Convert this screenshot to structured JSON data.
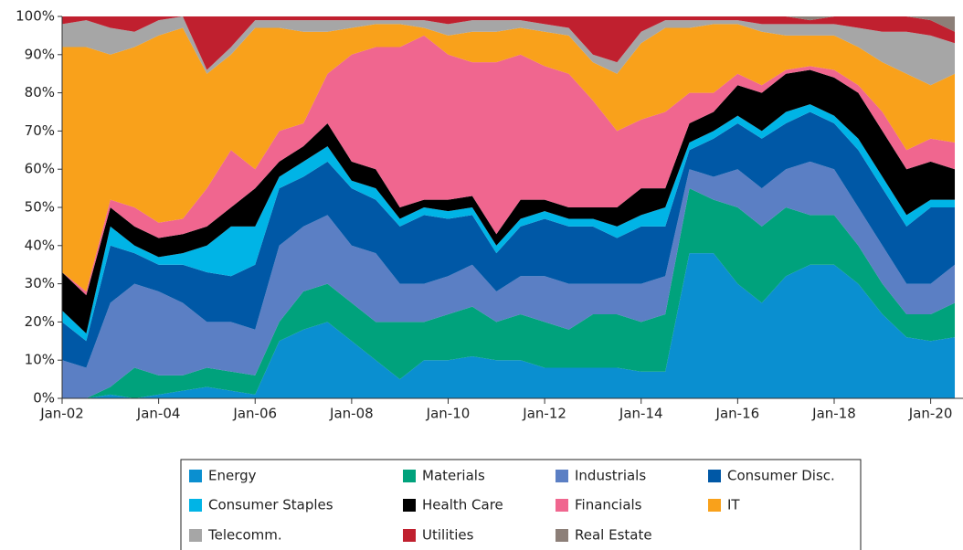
{
  "chart_data": {
    "type": "stacked_area",
    "x": [
      2002,
      2002.5,
      2003,
      2003.5,
      2004,
      2004.5,
      2005,
      2005.5,
      2006,
      2006.5,
      2007,
      2007.5,
      2008,
      2008.5,
      2009,
      2009.5,
      2010,
      2010.5,
      2011,
      2011.5,
      2012,
      2012.5,
      2013,
      2013.5,
      2014,
      2014.5,
      2015,
      2015.5,
      2016,
      2016.5,
      2017,
      2017.5,
      2018,
      2018.5,
      2019,
      2019.5,
      2020,
      2020.5
    ],
    "xlim": [
      2002,
      2020.67
    ],
    "xticks": [
      {
        "value": 2002,
        "label": "Jan-02"
      },
      {
        "value": 2004,
        "label": "Jan-04"
      },
      {
        "value": 2006,
        "label": "Jan-06"
      },
      {
        "value": 2008,
        "label": "Jan-08"
      },
      {
        "value": 2010,
        "label": "Jan-10"
      },
      {
        "value": 2012,
        "label": "Jan-12"
      },
      {
        "value": 2014,
        "label": "Jan-14"
      },
      {
        "value": 2016,
        "label": "Jan-16"
      },
      {
        "value": 2018,
        "label": "Jan-18"
      },
      {
        "value": 2020,
        "label": "Jan-20"
      }
    ],
    "ylim": [
      0,
      100
    ],
    "yticks": [
      {
        "value": 0,
        "label": "0%"
      },
      {
        "value": 10,
        "label": "10%"
      },
      {
        "value": 20,
        "label": "20%"
      },
      {
        "value": 30,
        "label": "30%"
      },
      {
        "value": 40,
        "label": "40%"
      },
      {
        "value": 50,
        "label": "50%"
      },
      {
        "value": 60,
        "label": "60%"
      },
      {
        "value": 70,
        "label": "70%"
      },
      {
        "value": 80,
        "label": "80%"
      },
      {
        "value": 90,
        "label": "90%"
      },
      {
        "value": 100,
        "label": "100%"
      }
    ],
    "series": [
      {
        "name": "Energy",
        "color": "#0a8fd0",
        "values": [
          0,
          0,
          1,
          0,
          1,
          2,
          3,
          2,
          1,
          15,
          18,
          20,
          15,
          10,
          5,
          10,
          10,
          11,
          10,
          10,
          8,
          8,
          8,
          8,
          7,
          7,
          38,
          38,
          30,
          25,
          32,
          35,
          35,
          30,
          22,
          16,
          15,
          16
        ]
      },
      {
        "name": "Materials",
        "color": "#00a27c",
        "values": [
          0,
          0,
          2,
          8,
          5,
          4,
          5,
          5,
          5,
          5,
          10,
          10,
          10,
          10,
          15,
          10,
          12,
          13,
          10,
          12,
          12,
          10,
          14,
          14,
          13,
          15,
          17,
          14,
          20,
          20,
          18,
          13,
          13,
          10,
          8,
          6,
          7,
          9
        ]
      },
      {
        "name": "Industrials",
        "color": "#5b7fc4",
        "values": [
          10,
          8,
          22,
          22,
          22,
          19,
          12,
          13,
          12,
          20,
          17,
          18,
          15,
          18,
          10,
          10,
          10,
          11,
          8,
          10,
          12,
          12,
          8,
          8,
          10,
          10,
          5,
          6,
          10,
          10,
          10,
          14,
          12,
          10,
          10,
          8,
          8,
          10
        ]
      },
      {
        "name": "Consumer Disc.",
        "color": "#0058a6",
        "values": [
          10,
          7,
          15,
          8,
          7,
          10,
          13,
          12,
          17,
          15,
          13,
          14,
          15,
          14,
          15,
          18,
          15,
          13,
          10,
          13,
          15,
          15,
          15,
          12,
          15,
          13,
          5,
          10,
          12,
          13,
          12,
          13,
          12,
          15,
          15,
          15,
          20,
          15
        ]
      },
      {
        "name": "Consumer Staples",
        "color": "#00b4e6",
        "values": [
          3,
          2,
          5,
          2,
          2,
          3,
          7,
          13,
          10,
          3,
          4,
          4,
          2,
          3,
          2,
          2,
          2,
          2,
          2,
          2,
          2,
          2,
          2,
          3,
          3,
          5,
          2,
          2,
          2,
          2,
          3,
          2,
          2,
          3,
          3,
          3,
          2,
          2
        ]
      },
      {
        "name": "Health Care",
        "color": "#000000",
        "values": [
          10,
          10,
          5,
          5,
          5,
          5,
          5,
          5,
          10,
          4,
          4,
          6,
          5,
          5,
          3,
          2,
          3,
          3,
          3,
          5,
          3,
          3,
          3,
          5,
          7,
          5,
          5,
          5,
          8,
          10,
          10,
          9,
          10,
          12,
          12,
          12,
          10,
          8
        ]
      },
      {
        "name": "Financials",
        "color": "#f0668f",
        "values": [
          0,
          1,
          2,
          5,
          4,
          4,
          10,
          15,
          5,
          8,
          6,
          13,
          28,
          32,
          42,
          43,
          38,
          35,
          45,
          38,
          35,
          35,
          28,
          20,
          18,
          20,
          8,
          5,
          3,
          2,
          1,
          1,
          2,
          2,
          5,
          5,
          6,
          7
        ]
      },
      {
        "name": "IT",
        "color": "#f9a11b",
        "values": [
          59,
          64,
          38,
          42,
          49,
          50,
          30,
          25,
          37,
          27,
          24,
          11,
          7,
          6,
          6,
          2,
          5,
          8,
          8,
          7,
          9,
          10,
          10,
          15,
          20,
          22,
          17,
          18,
          13,
          14,
          9,
          8,
          9,
          10,
          13,
          20,
          14,
          18
        ]
      },
      {
        "name": "Telecomm.",
        "color": "#a6a6a6",
        "values": [
          6,
          7,
          7,
          4,
          4,
          3,
          1,
          2,
          2,
          2,
          3,
          3,
          2,
          1,
          1,
          2,
          3,
          3,
          3,
          2,
          2,
          2,
          2,
          3,
          3,
          2,
          2,
          1,
          1,
          2,
          3,
          3,
          3,
          5,
          8,
          11,
          13,
          8
        ]
      },
      {
        "name": "Utilities",
        "color": "#c0202f",
        "values": [
          2,
          1,
          3,
          4,
          1,
          0,
          14,
          8,
          1,
          1,
          1,
          1,
          1,
          1,
          1,
          1,
          2,
          1,
          1,
          1,
          2,
          3,
          10,
          12,
          4,
          1,
          1,
          1,
          1,
          2,
          2,
          1,
          2,
          3,
          4,
          4,
          4,
          3
        ]
      },
      {
        "name": "Real Estate",
        "color": "#8c7f78",
        "values": [
          0,
          0,
          0,
          0,
          0,
          0,
          0,
          0,
          0,
          0,
          0,
          0,
          0,
          0,
          0,
          0,
          0,
          0,
          0,
          0,
          0,
          0,
          0,
          0,
          0,
          0,
          0,
          0,
          0,
          0,
          0,
          1,
          0,
          0,
          0,
          0,
          1,
          4
        ]
      }
    ]
  }
}
